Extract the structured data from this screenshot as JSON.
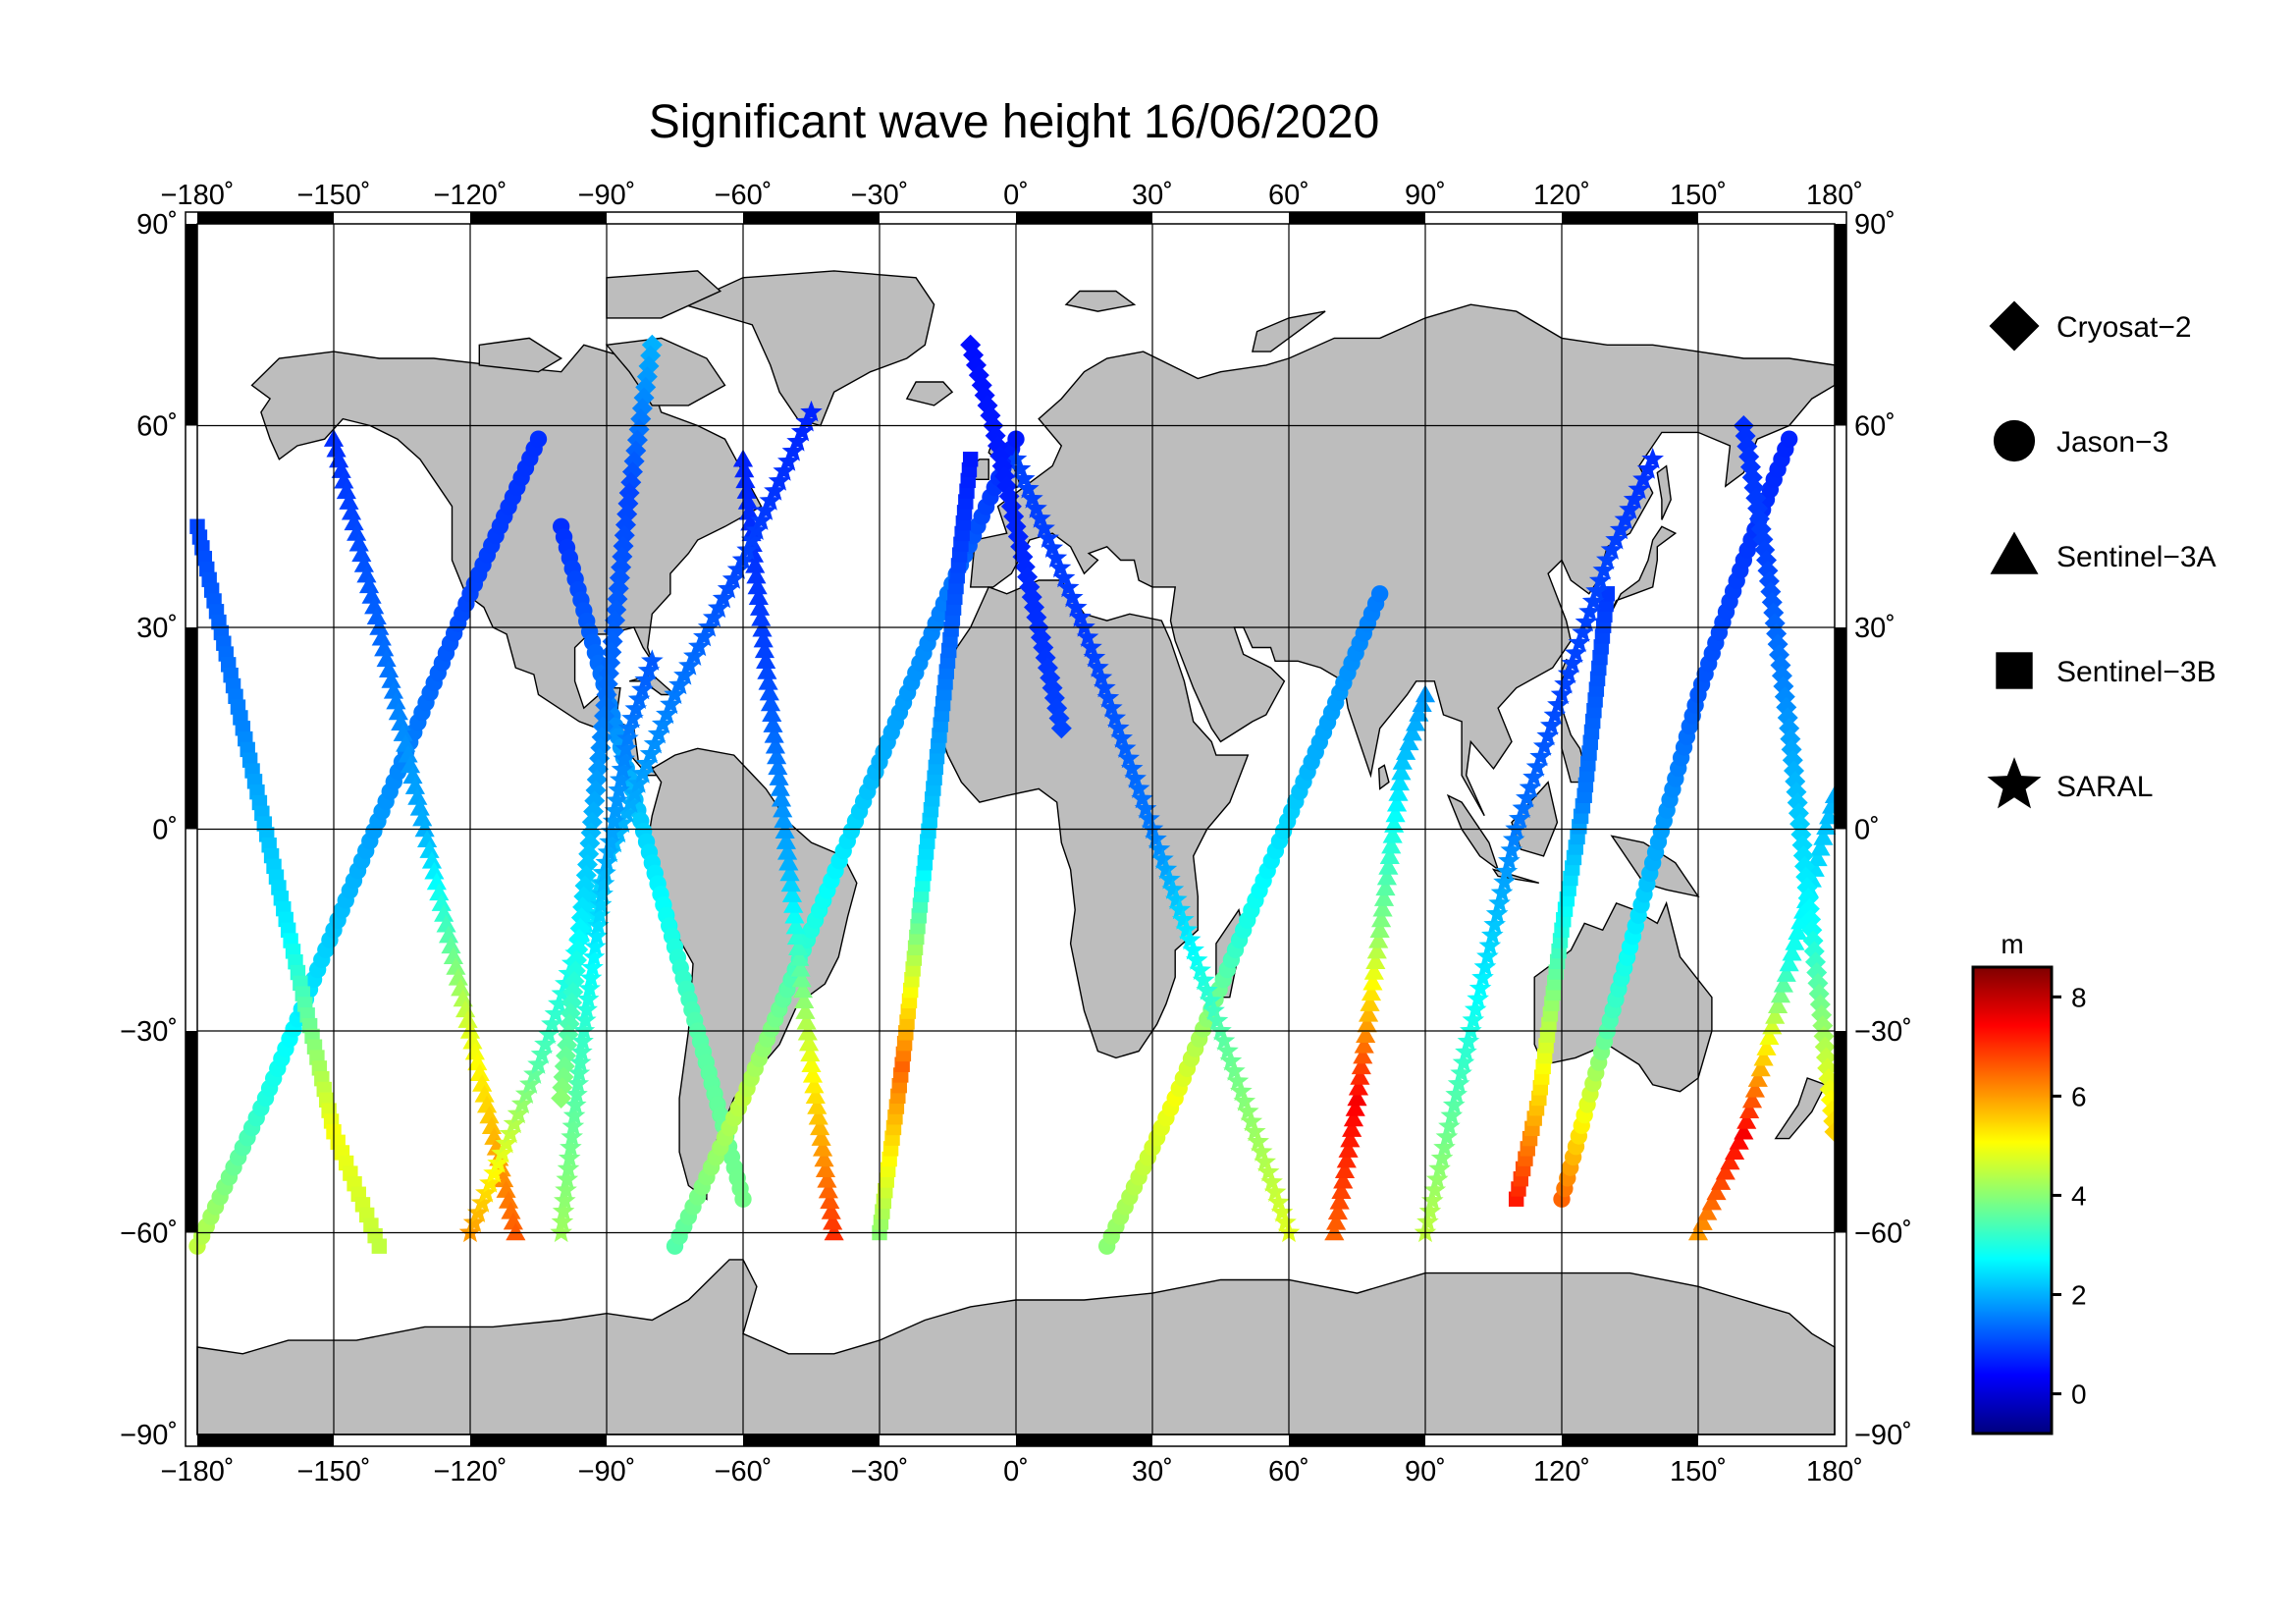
{
  "title": "Significant wave height 16/06/2020",
  "lon_ticks": [
    "−180˚",
    "−150˚",
    "−120˚",
    "−90˚",
    "−60˚",
    "−30˚",
    "0˚",
    "30˚",
    "60˚",
    "90˚",
    "120˚",
    "150˚",
    "180˚"
  ],
  "lat_ticks_left": [
    "90˚",
    "60˚",
    "30˚",
    "0˚",
    "−30˚",
    "−60˚",
    "−90˚"
  ],
  "lat_ticks_right": [
    "90˚",
    "60˚",
    "30˚",
    "0˚",
    "−30˚",
    "−60˚",
    "−90˚"
  ],
  "legend": [
    {
      "symbol": "diamond",
      "label": "Cryosat−2"
    },
    {
      "symbol": "circle",
      "label": "Jason−3"
    },
    {
      "symbol": "triangle",
      "label": "Sentinel−3A"
    },
    {
      "symbol": "square",
      "label": "Sentinel−3B"
    },
    {
      "symbol": "star",
      "label": "SARAL"
    }
  ],
  "colorbar": {
    "unit": "m",
    "min": -0.8,
    "max": 8.6,
    "tick_labels": [
      "8",
      "6",
      "4",
      "2",
      "0"
    ],
    "tick_values": [
      8,
      6,
      4,
      2,
      0
    ],
    "colormap": [
      "#00007f",
      "#0000ff",
      "#007fff",
      "#00ffff",
      "#7fff7f",
      "#ffff00",
      "#ff7f00",
      "#ff0000",
      "#7f0000"
    ]
  },
  "colors": {
    "land": "#bdbdbd",
    "ocean": "#ffffff"
  },
  "chart_data": {
    "type": "scatter",
    "title": "Significant wave height 16/06/2020",
    "xlabel": "",
    "ylabel": "",
    "xlim": [
      -180,
      180
    ],
    "ylim": [
      -90,
      90
    ],
    "grid": true,
    "legend_position": "right",
    "series": [
      {
        "name": "Jason−3",
        "symbol": "circle",
        "tracks": [
          {
            "lon": [
              -180,
              -165,
              -150,
              -135,
              -120,
              -105
            ],
            "lat": [
              -62,
              -40,
              -15,
              10,
              35,
              58
            ],
            "hs": [
              4.5,
              3.0,
              2.2,
              1.6,
              1.0,
              0.8
            ]
          },
          {
            "lon": [
              -100,
              -90,
              -80,
              -70,
              -60
            ],
            "lat": [
              45,
              20,
              -5,
              -30,
              -55
            ],
            "hs": [
              0.8,
              1.5,
              2.5,
              3.5,
              3.8
            ]
          },
          {
            "lon": [
              -75,
              -60,
              -45,
              -30,
              -15,
              0
            ],
            "lat": [
              -62,
              -40,
              -15,
              10,
              35,
              58
            ],
            "hs": [
              3.5,
              4.5,
              3.0,
              2.0,
              1.5,
              0.6
            ]
          },
          {
            "lon": [
              20,
              35,
              50,
              65,
              80
            ],
            "lat": [
              -62,
              -40,
              -15,
              10,
              35
            ],
            "hs": [
              4.0,
              5.0,
              3.0,
              2.0,
              1.5
            ]
          },
          {
            "lon": [
              120,
              130,
              140,
              150,
              160,
              170
            ],
            "lat": [
              -55,
              -30,
              -5,
              20,
              40,
              58
            ],
            "hs": [
              6.5,
              3.5,
              2.0,
              1.2,
              0.9,
              0.7
            ]
          }
        ]
      },
      {
        "name": "Sentinel−3A",
        "symbol": "triangle",
        "tracks": [
          {
            "lon": [
              -150,
              -140,
              -130,
              -120,
              -110
            ],
            "lat": [
              58,
              30,
              0,
              -30,
              -60
            ],
            "hs": [
              0.8,
              1.3,
              2.0,
              4.8,
              6.6
            ]
          },
          {
            "lon": [
              -40,
              -45,
              -50,
              -55,
              -60
            ],
            "lat": [
              -60,
              -35,
              -5,
              25,
              55
            ],
            "hs": [
              7.0,
              5.0,
              2.0,
              1.0,
              0.7
            ]
          },
          {
            "lon": [
              70,
              75,
              80,
              85,
              90
            ],
            "lat": [
              -60,
              -40,
              -15,
              10,
              20
            ],
            "hs": [
              6.5,
              7.5,
              4.0,
              2.2,
              1.8
            ]
          },
          {
            "lon": [
              150,
              160,
              170,
              180
            ],
            "lat": [
              -60,
              -45,
              -20,
              5
            ],
            "hs": [
              6.0,
              7.5,
              3.0,
              2.0
            ]
          }
        ]
      },
      {
        "name": "Sentinel−3B",
        "symbol": "square",
        "tracks": [
          {
            "lon": [
              -180,
              -170,
              -160,
              -150,
              -140
            ],
            "lat": [
              45,
              15,
              -15,
              -45,
              -62
            ],
            "hs": [
              1.0,
              1.6,
              2.6,
              5.0,
              4.5
            ]
          },
          {
            "lon": [
              -30,
              -25,
              -20,
              -15,
              -10
            ],
            "lat": [
              -60,
              -35,
              -5,
              25,
              55
            ],
            "hs": [
              4.0,
              6.5,
              2.5,
              1.4,
              0.6
            ]
          },
          {
            "lon": [
              110,
              115,
              120,
              125,
              130
            ],
            "lat": [
              -55,
              -40,
              -15,
              5,
              35
            ],
            "hs": [
              7.2,
              5.5,
              3.0,
              1.5,
              0.9
            ]
          }
        ]
      },
      {
        "name": "SARAL",
        "symbol": "star",
        "tracks": [
          {
            "lon": [
              -120,
              -105,
              -90,
              -75,
              -60,
              -45
            ],
            "lat": [
              -60,
              -35,
              -5,
              20,
              40,
              62
            ],
            "hs": [
              6.0,
              3.5,
              2.2,
              1.5,
              1.0,
              0.7
            ]
          },
          {
            "lon": [
              0,
              15,
              30,
              45,
              60
            ],
            "lat": [
              55,
              30,
              0,
              -30,
              -60
            ],
            "hs": [
              1.0,
              0.9,
              1.5,
              3.5,
              4.8
            ]
          },
          {
            "lon": [
              90,
              100,
              110,
              120,
              130,
              140
            ],
            "lat": [
              -60,
              -30,
              0,
              20,
              40,
              55
            ],
            "hs": [
              4.5,
              3.0,
              1.5,
              1.0,
              1.0,
              0.8
            ]
          },
          {
            "lon": [
              -100,
              -95,
              -90,
              -85,
              -80
            ],
            "lat": [
              -60,
              -30,
              -5,
              15,
              25
            ],
            "hs": [
              4.2,
              3.2,
              2.0,
              1.5,
              1.2
            ]
          }
        ]
      },
      {
        "name": "Cryosat−2",
        "symbol": "diamond",
        "tracks": [
          {
            "lon": [
              -10,
              -5,
              0,
              5,
              10
            ],
            "lat": [
              72,
              60,
              45,
              30,
              15
            ],
            "hs": [
              0.5,
              0.6,
              0.7,
              0.8,
              1.0
            ]
          },
          {
            "lon": [
              160,
              165,
              170,
              175,
              180
            ],
            "lat": [
              60,
              40,
              15,
              -15,
              -45
            ],
            "hs": [
              0.8,
              1.0,
              1.8,
              2.8,
              5.5
            ]
          },
          {
            "lon": [
              -80,
              -85,
              -90,
              -95,
              -100
            ],
            "lat": [
              72,
              50,
              20,
              -10,
              -40
            ],
            "hs": [
              2.0,
              1.0,
              1.4,
              2.4,
              4.0
            ]
          }
        ]
      }
    ]
  }
}
